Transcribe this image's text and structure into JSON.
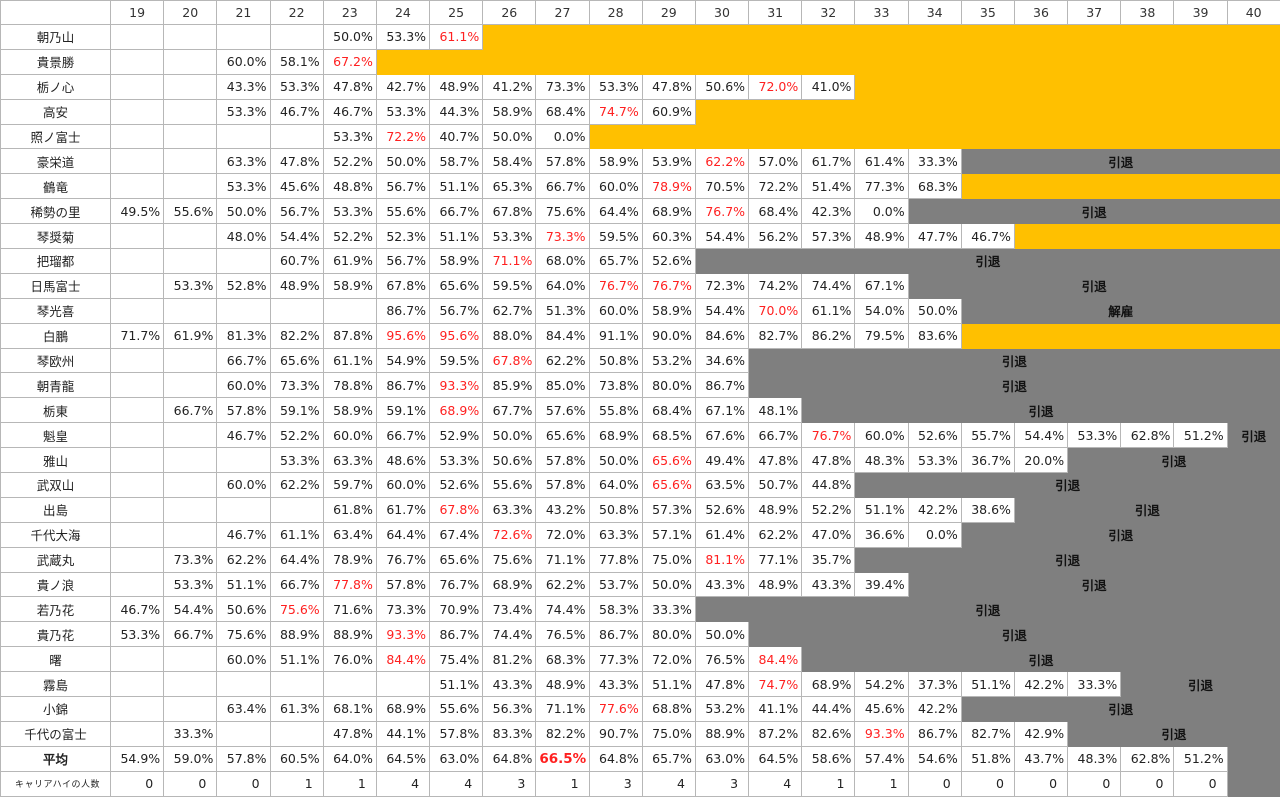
{
  "header": {
    "corner": "",
    "years": [
      "19",
      "20",
      "21",
      "22",
      "23",
      "24",
      "25",
      "26",
      "27",
      "28",
      "29",
      "30",
      "31",
      "32",
      "33",
      "34",
      "35",
      "36",
      "37",
      "38",
      "39",
      "40"
    ]
  },
  "colors": {
    "active_fill": "#ffc000",
    "retired_fill": "#7f7f7f",
    "career_high_text": "#ff2020"
  },
  "rows": [
    {
      "name": "朝乃山",
      "vals": [
        "",
        "",
        "",
        "",
        "50.0%",
        "53.3%",
        "61.1%"
      ],
      "highs": [
        6
      ],
      "status": "active"
    },
    {
      "name": "貴景勝",
      "vals": [
        "",
        "",
        "60.0%",
        "58.1%",
        "67.2%"
      ],
      "highs": [
        4
      ],
      "status": "active"
    },
    {
      "name": "栃ノ心",
      "vals": [
        "",
        "",
        "43.3%",
        "53.3%",
        "47.8%",
        "42.7%",
        "48.9%",
        "41.2%",
        "73.3%",
        "53.3%",
        "47.8%",
        "50.6%",
        "72.0%",
        "41.0%"
      ],
      "highs": [
        12
      ],
      "status": "active"
    },
    {
      "name": "高安",
      "vals": [
        "",
        "",
        "53.3%",
        "46.7%",
        "46.7%",
        "53.3%",
        "44.3%",
        "58.9%",
        "68.4%",
        "74.7%",
        "60.9%"
      ],
      "highs": [
        9
      ],
      "status": "active"
    },
    {
      "name": "照ノ富士",
      "vals": [
        "",
        "",
        "",
        "",
        "53.3%",
        "72.2%",
        "40.7%",
        "50.0%",
        "0.0%"
      ],
      "highs": [
        5
      ],
      "status": "active"
    },
    {
      "name": "豪栄道",
      "vals": [
        "",
        "",
        "63.3%",
        "47.8%",
        "52.2%",
        "50.0%",
        "58.7%",
        "58.4%",
        "57.8%",
        "58.9%",
        "53.9%",
        "62.2%",
        "57.0%",
        "61.7%",
        "61.4%",
        "33.3%"
      ],
      "highs": [
        11
      ],
      "status": "retired",
      "label": "引退"
    },
    {
      "name": "鶴竜",
      "vals": [
        "",
        "",
        "53.3%",
        "45.6%",
        "48.8%",
        "56.7%",
        "51.1%",
        "65.3%",
        "66.7%",
        "60.0%",
        "78.9%",
        "70.5%",
        "72.2%",
        "51.4%",
        "77.3%",
        "68.3%"
      ],
      "highs": [
        10
      ],
      "status": "active"
    },
    {
      "name": "稀勢の里",
      "vals": [
        "49.5%",
        "55.6%",
        "50.0%",
        "56.7%",
        "53.3%",
        "55.6%",
        "66.7%",
        "67.8%",
        "75.6%",
        "64.4%",
        "68.9%",
        "76.7%",
        "68.4%",
        "42.3%",
        "0.0%"
      ],
      "highs": [
        11
      ],
      "status": "retired",
      "label": "引退"
    },
    {
      "name": "琴奨菊",
      "vals": [
        "",
        "",
        "48.0%",
        "54.4%",
        "52.2%",
        "52.3%",
        "51.1%",
        "53.3%",
        "73.3%",
        "59.5%",
        "60.3%",
        "54.4%",
        "56.2%",
        "57.3%",
        "48.9%",
        "47.7%",
        "46.7%"
      ],
      "highs": [
        8
      ],
      "status": "active"
    },
    {
      "name": "把瑠都",
      "vals": [
        "",
        "",
        "",
        "60.7%",
        "61.9%",
        "56.7%",
        "58.9%",
        "71.1%",
        "68.0%",
        "65.7%",
        "52.6%"
      ],
      "highs": [
        7
      ],
      "status": "retired",
      "label": "引退"
    },
    {
      "name": "日馬富士",
      "vals": [
        "",
        "53.3%",
        "52.8%",
        "48.9%",
        "58.9%",
        "67.8%",
        "65.6%",
        "59.5%",
        "64.0%",
        "76.7%",
        "76.7%",
        "72.3%",
        "74.2%",
        "74.4%",
        "67.1%"
      ],
      "highs": [
        9,
        10
      ],
      "status": "retired",
      "label": "引退"
    },
    {
      "name": "琴光喜",
      "vals": [
        "",
        "",
        "",
        "",
        "",
        "86.7%",
        "56.7%",
        "62.7%",
        "51.3%",
        "60.0%",
        "58.9%",
        "54.4%",
        "70.0%",
        "61.1%",
        "54.0%",
        "50.0%"
      ],
      "highs": [
        12
      ],
      "status": "retired",
      "label": "解雇"
    },
    {
      "name": "白鵬",
      "vals": [
        "71.7%",
        "61.9%",
        "81.3%",
        "82.2%",
        "87.8%",
        "95.6%",
        "95.6%",
        "88.0%",
        "84.4%",
        "91.1%",
        "90.0%",
        "84.6%",
        "82.7%",
        "86.2%",
        "79.5%",
        "83.6%"
      ],
      "highs": [
        5,
        6
      ],
      "status": "active"
    },
    {
      "name": "琴欧州",
      "vals": [
        "",
        "",
        "66.7%",
        "65.6%",
        "61.1%",
        "54.9%",
        "59.5%",
        "67.8%",
        "62.2%",
        "50.8%",
        "53.2%",
        "34.6%"
      ],
      "highs": [
        7
      ],
      "status": "retired",
      "label": "引退"
    },
    {
      "name": "朝青龍",
      "vals": [
        "",
        "",
        "60.0%",
        "73.3%",
        "78.8%",
        "86.7%",
        "93.3%",
        "85.9%",
        "85.0%",
        "73.8%",
        "80.0%",
        "86.7%"
      ],
      "highs": [
        6
      ],
      "status": "retired",
      "label": "引退"
    },
    {
      "name": "栃東",
      "vals": [
        "",
        "66.7%",
        "57.8%",
        "59.1%",
        "58.9%",
        "59.1%",
        "68.9%",
        "67.7%",
        "57.6%",
        "55.8%",
        "68.4%",
        "67.1%",
        "48.1%"
      ],
      "highs": [
        6
      ],
      "status": "retired",
      "label": "引退"
    },
    {
      "name": "魁皇",
      "vals": [
        "",
        "",
        "46.7%",
        "52.2%",
        "60.0%",
        "66.7%",
        "52.9%",
        "50.0%",
        "65.6%",
        "68.9%",
        "68.5%",
        "67.6%",
        "66.7%",
        "76.7%",
        "60.0%",
        "52.6%",
        "55.7%",
        "54.4%",
        "53.3%",
        "62.8%",
        "51.2%"
      ],
      "highs": [
        13
      ],
      "status": "retired",
      "label": "引退"
    },
    {
      "name": "雅山",
      "vals": [
        "",
        "",
        "",
        "53.3%",
        "63.3%",
        "48.6%",
        "53.3%",
        "50.6%",
        "57.8%",
        "50.0%",
        "65.6%",
        "49.4%",
        "47.8%",
        "47.8%",
        "48.3%",
        "53.3%",
        "36.7%",
        "20.0%"
      ],
      "highs": [
        10
      ],
      "status": "retired",
      "label": "引退"
    },
    {
      "name": "武双山",
      "vals": [
        "",
        "",
        "60.0%",
        "62.2%",
        "59.7%",
        "60.0%",
        "52.6%",
        "55.6%",
        "57.8%",
        "64.0%",
        "65.6%",
        "63.5%",
        "50.7%",
        "44.8%"
      ],
      "highs": [
        10
      ],
      "status": "retired",
      "label": "引退"
    },
    {
      "name": "出島",
      "vals": [
        "",
        "",
        "",
        "",
        "61.8%",
        "61.7%",
        "67.8%",
        "63.3%",
        "43.2%",
        "50.8%",
        "57.3%",
        "52.6%",
        "48.9%",
        "52.2%",
        "51.1%",
        "42.2%",
        "38.6%"
      ],
      "highs": [
        6
      ],
      "status": "retired",
      "label": "引退"
    },
    {
      "name": "千代大海",
      "vals": [
        "",
        "",
        "46.7%",
        "61.1%",
        "63.4%",
        "64.4%",
        "67.4%",
        "72.6%",
        "72.0%",
        "63.3%",
        "57.1%",
        "61.4%",
        "62.2%",
        "47.0%",
        "36.6%",
        "0.0%"
      ],
      "highs": [
        7
      ],
      "status": "retired",
      "label": "引退"
    },
    {
      "name": "武蔵丸",
      "vals": [
        "",
        "73.3%",
        "62.2%",
        "64.4%",
        "78.9%",
        "76.7%",
        "65.6%",
        "75.6%",
        "71.1%",
        "77.8%",
        "75.0%",
        "81.1%",
        "77.1%",
        "35.7%"
      ],
      "highs": [
        11
      ],
      "status": "retired",
      "label": "引退"
    },
    {
      "name": "貴ノ浪",
      "vals": [
        "",
        "53.3%",
        "51.1%",
        "66.7%",
        "77.8%",
        "57.8%",
        "76.7%",
        "68.9%",
        "62.2%",
        "53.7%",
        "50.0%",
        "43.3%",
        "48.9%",
        "43.3%",
        "39.4%"
      ],
      "highs": [
        4
      ],
      "status": "retired",
      "label": "引退"
    },
    {
      "name": "若乃花",
      "vals": [
        "46.7%",
        "54.4%",
        "50.6%",
        "75.6%",
        "71.6%",
        "73.3%",
        "70.9%",
        "73.4%",
        "74.4%",
        "58.3%",
        "33.3%"
      ],
      "highs": [
        3
      ],
      "status": "retired",
      "label": "引退"
    },
    {
      "name": "貴乃花",
      "vals": [
        "53.3%",
        "66.7%",
        "75.6%",
        "88.9%",
        "88.9%",
        "93.3%",
        "86.7%",
        "74.4%",
        "76.5%",
        "86.7%",
        "80.0%",
        "50.0%"
      ],
      "highs": [
        5
      ],
      "status": "retired",
      "label": "引退"
    },
    {
      "name": "曙",
      "vals": [
        "",
        "",
        "60.0%",
        "51.1%",
        "76.0%",
        "84.4%",
        "75.4%",
        "81.2%",
        "68.3%",
        "77.3%",
        "72.0%",
        "76.5%",
        "84.4%"
      ],
      "highs": [
        5,
        12
      ],
      "status": "retired",
      "label": "引退"
    },
    {
      "name": "霧島",
      "vals": [
        "",
        "",
        "",
        "",
        "",
        "",
        "51.1%",
        "43.3%",
        "48.9%",
        "43.3%",
        "51.1%",
        "47.8%",
        "74.7%",
        "68.9%",
        "54.2%",
        "37.3%",
        "51.1%",
        "42.2%",
        "33.3%"
      ],
      "highs": [
        12
      ],
      "status": "retired",
      "label": "引退"
    },
    {
      "name": "小錦",
      "vals": [
        "",
        "",
        "63.4%",
        "61.3%",
        "68.1%",
        "68.9%",
        "55.6%",
        "56.3%",
        "71.1%",
        "77.6%",
        "68.8%",
        "53.2%",
        "41.1%",
        "44.4%",
        "45.6%",
        "42.2%"
      ],
      "highs": [
        9
      ],
      "status": "retired",
      "label": "引退"
    },
    {
      "name": "千代の富士",
      "vals": [
        "",
        "33.3%",
        "",
        "",
        "47.8%",
        "44.1%",
        "57.8%",
        "83.3%",
        "82.2%",
        "90.7%",
        "75.0%",
        "88.9%",
        "87.2%",
        "82.6%",
        "93.3%",
        "86.7%",
        "82.7%",
        "42.9%"
      ],
      "highs": [
        14
      ],
      "status": "retired",
      "label": "引退"
    }
  ],
  "average": {
    "name": "平均",
    "vals": [
      "54.9%",
      "59.0%",
      "57.8%",
      "60.5%",
      "64.0%",
      "64.5%",
      "63.0%",
      "64.8%",
      "66.5%",
      "64.8%",
      "65.7%",
      "63.0%",
      "64.5%",
      "58.6%",
      "57.4%",
      "54.6%",
      "51.8%",
      "43.7%",
      "48.3%",
      "62.8%",
      "51.2%"
    ],
    "best_index": 8
  },
  "career_high_count": {
    "name": "キャリアハイの人数",
    "vals": [
      "0",
      "0",
      "0",
      "1",
      "1",
      "4",
      "4",
      "3",
      "1",
      "3",
      "4",
      "3",
      "4",
      "1",
      "1",
      "0",
      "0",
      "0",
      "0",
      "0",
      "0"
    ]
  }
}
